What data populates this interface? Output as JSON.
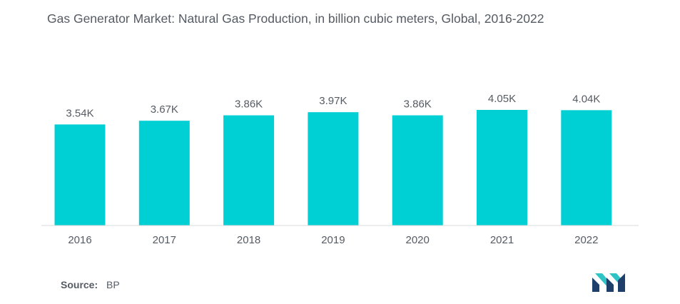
{
  "title": "Gas Generator Market: Natural Gas Production, in billion cubic meters, Global, 2016-2022",
  "source_label": "Source:",
  "source_value": "BP",
  "colors": {
    "bar": "#00cfd3",
    "text": "#555b63",
    "axis": "#d9d9d9",
    "logo_dark": "#1f3f6b",
    "logo_light": "#2ec4c6"
  },
  "chart_data": {
    "type": "bar",
    "title": "Gas Generator Market: Natural Gas Production, in billion cubic meters, Global, 2016-2022",
    "categories": [
      "2016",
      "2017",
      "2018",
      "2019",
      "2020",
      "2021",
      "2022"
    ],
    "values": [
      3540,
      3670,
      3860,
      3970,
      3860,
      4050,
      4040
    ],
    "data_labels": [
      "3.54K",
      "3.67K",
      "3.86K",
      "3.97K",
      "3.86K",
      "4.05K",
      "4.04K"
    ],
    "xlabel": "",
    "ylabel": "",
    "grid": false,
    "legend": "none"
  }
}
